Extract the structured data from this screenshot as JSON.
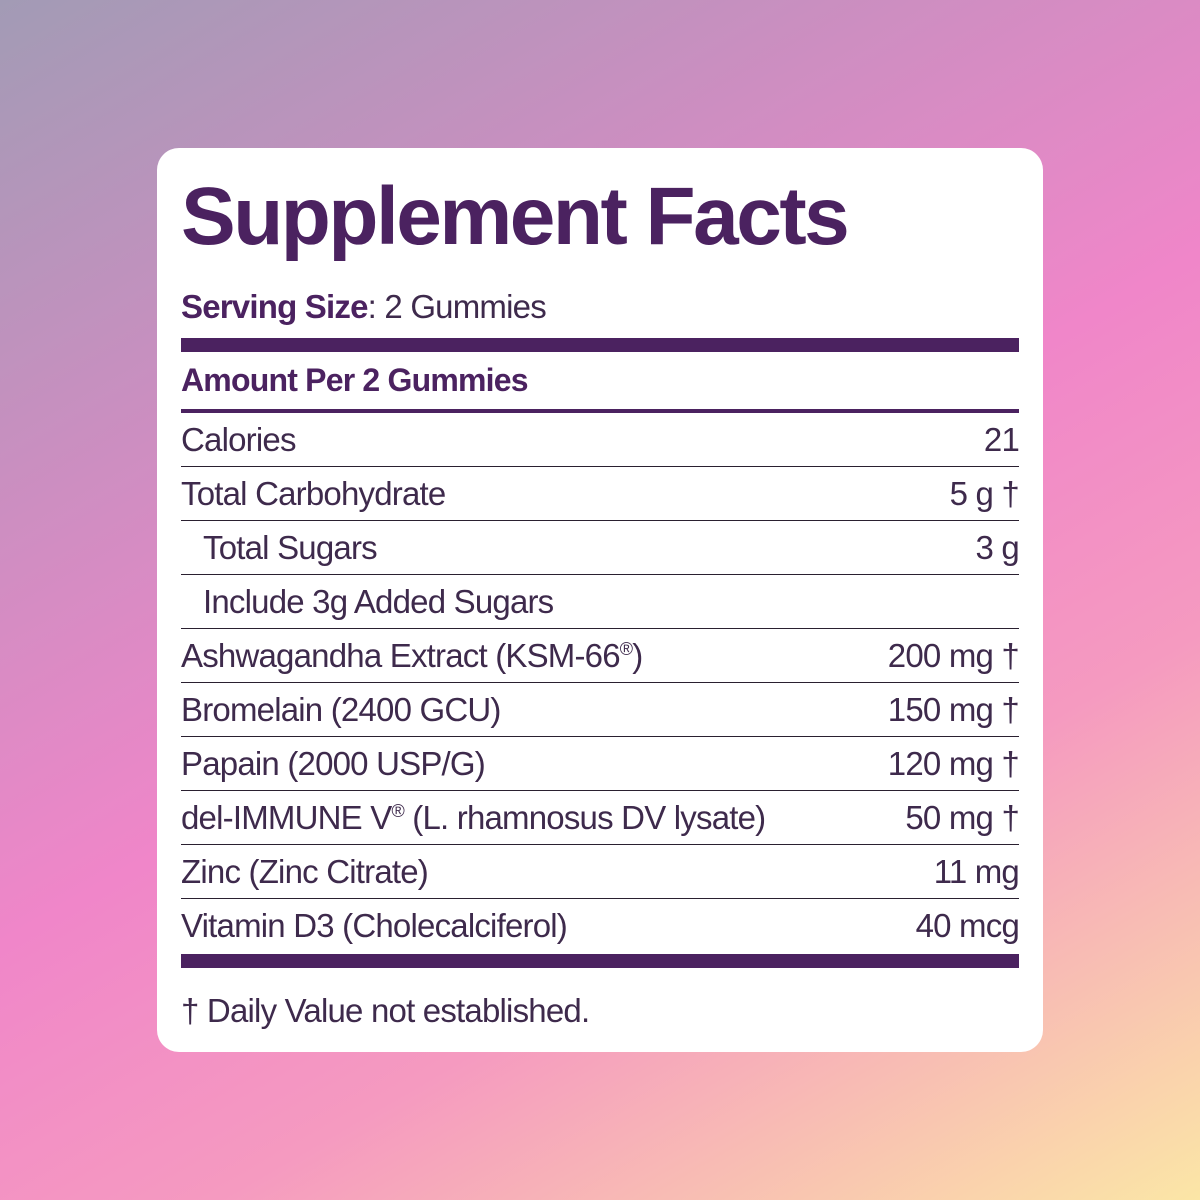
{
  "colors": {
    "brand": "#4b2260",
    "text": "#3e2a4c"
  },
  "title": "Supplement Facts",
  "serving": {
    "label": "Serving Size",
    "value": ": 2 Gummies"
  },
  "amount_header": "Amount Per 2 Gummies",
  "rows": [
    {
      "name": "Calories",
      "amount": "21",
      "indent": false
    },
    {
      "name": "Total Carbohydrate",
      "amount": "5 g †",
      "indent": false
    },
    {
      "name": "Total Sugars",
      "amount": "3 g",
      "indent": true
    },
    {
      "name": "Include 3g Added Sugars",
      "amount": "",
      "indent": true
    },
    {
      "name": "Ashwagandha Extract (KSM-66",
      "sup": "®",
      "name_after": ")",
      "amount": "200 mg †",
      "indent": false
    },
    {
      "name": "Bromelain (2400 GCU)",
      "amount": "150 mg †",
      "indent": false
    },
    {
      "name": "Papain (2000 USP/G)",
      "amount": "120 mg †",
      "indent": false
    },
    {
      "name": "del-IMMUNE V",
      "sup": "®",
      "name_after": " (L. rhamnosus DV lysate)",
      "amount": "50 mg †",
      "indent": false
    },
    {
      "name": "Zinc (Zinc Citrate)",
      "amount": "11 mg",
      "indent": false
    },
    {
      "name": "Vitamin D3 (Cholecalciferol)",
      "amount": "40 mcg",
      "indent": false
    }
  ],
  "footnote": "† Daily Value not established."
}
